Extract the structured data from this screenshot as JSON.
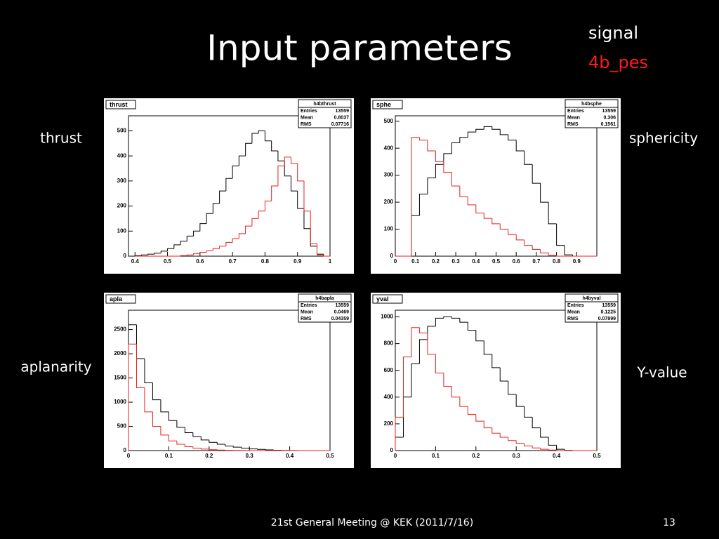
{
  "slide": {
    "title": "Input parameters",
    "signal_label": "signal",
    "signal_name": "4b_pes",
    "panel_labels": [
      "thrust",
      "sphericity",
      "aplanarity",
      "Y-value"
    ],
    "footer": "21st General Meeting @ KEK (2011/7/16)",
    "page": 13
  },
  "chart_data": [
    {
      "type": "histogram",
      "title": "thrust",
      "stats": {
        "name": "h4bthrust",
        "rows": [
          {
            "label": "Entries",
            "value": 13559
          },
          {
            "label": "Mean",
            "value": 0.8037
          },
          {
            "label": "RMS",
            "value": 0.07716
          }
        ]
      },
      "bins": [
        0.4,
        0.42,
        0.44,
        0.46,
        0.48,
        0.5,
        0.52,
        0.54,
        0.56,
        0.58,
        0.6,
        0.62,
        0.64,
        0.66,
        0.68,
        0.7,
        0.72,
        0.74,
        0.76,
        0.78,
        0.8,
        0.82,
        0.84,
        0.86,
        0.88,
        0.9,
        0.92,
        0.94,
        0.96,
        0.98,
        1
      ],
      "series": [
        {
          "color": "#000000",
          "values": [
            2,
            5,
            8,
            12,
            20,
            30,
            45,
            60,
            80,
            100,
            130,
            170,
            210,
            260,
            310,
            360,
            400,
            450,
            490,
            500,
            460,
            420,
            380,
            320,
            260,
            190,
            110,
            40,
            8,
            0
          ]
        },
        {
          "color": "#e8201c",
          "values": [
            0,
            0,
            0,
            0,
            0,
            0,
            0,
            2,
            5,
            10,
            15,
            22,
            30,
            40,
            55,
            70,
            90,
            120,
            150,
            180,
            220,
            280,
            360,
            395,
            370,
            300,
            180,
            50,
            5,
            0
          ]
        }
      ],
      "xlim": [
        0.38,
        1
      ],
      "xticks": [
        0.4,
        0.5,
        0.6,
        0.7,
        0.8,
        0.9,
        1
      ],
      "ylim": [
        0,
        560
      ],
      "yticks": [
        0,
        100,
        200,
        300,
        400,
        500
      ]
    },
    {
      "type": "histogram",
      "title": "sphe",
      "stats": {
        "name": "h4bsphe",
        "rows": [
          {
            "label": "Entries",
            "value": 13559
          },
          {
            "label": "Mean",
            "value": 0.306
          },
          {
            "label": "RMS",
            "value": 0.1561
          }
        ]
      },
      "bins": [
        0,
        0.04,
        0.08,
        0.12,
        0.16,
        0.2,
        0.24,
        0.28,
        0.32,
        0.36,
        0.4,
        0.44,
        0.48,
        0.52,
        0.56,
        0.6,
        0.64,
        0.68,
        0.72,
        0.76,
        0.8,
        0.84,
        0.88,
        0.92,
        0.96,
        1
      ],
      "series": [
        {
          "color": "#000000",
          "values": [
            0,
            0,
            150,
            230,
            290,
            340,
            380,
            420,
            440,
            460,
            470,
            480,
            470,
            450,
            430,
            390,
            340,
            270,
            200,
            120,
            40,
            5,
            0,
            0,
            0
          ]
        },
        {
          "color": "#e8201c",
          "values": [
            0,
            0,
            440,
            430,
            390,
            350,
            310,
            260,
            220,
            190,
            160,
            140,
            120,
            100,
            80,
            60,
            40,
            25,
            12,
            4,
            0,
            0,
            0,
            0,
            0
          ]
        }
      ],
      "xlim": [
        0,
        1
      ],
      "xticks": [
        0,
        0.1,
        0.2,
        0.3,
        0.4,
        0.5,
        0.6,
        0.7,
        0.8,
        0.9
      ],
      "ylim": [
        0,
        520
      ],
      "yticks": [
        0,
        100,
        200,
        300,
        400,
        500
      ]
    },
    {
      "type": "histogram",
      "title": "apla",
      "stats": {
        "name": "h4bapla",
        "rows": [
          {
            "label": "Entries",
            "value": 13559
          },
          {
            "label": "Mean",
            "value": 0.0469
          },
          {
            "label": "RMS",
            "value": 0.04359
          }
        ]
      },
      "bins": [
        0,
        0.02,
        0.04,
        0.06,
        0.08,
        0.1,
        0.12,
        0.14,
        0.16,
        0.18,
        0.2,
        0.22,
        0.24,
        0.26,
        0.28,
        0.3,
        0.32,
        0.34,
        0.36,
        0.38,
        0.4,
        0.42,
        0.44,
        0.46,
        0.48,
        0.5
      ],
      "series": [
        {
          "color": "#000000",
          "values": [
            2600,
            1900,
            1400,
            1050,
            800,
            620,
            480,
            370,
            290,
            220,
            170,
            130,
            95,
            70,
            50,
            35,
            25,
            15,
            8,
            4,
            2,
            0,
            0,
            0,
            0
          ]
        },
        {
          "color": "#e8201c",
          "values": [
            2200,
            1300,
            800,
            500,
            320,
            200,
            130,
            80,
            50,
            30,
            18,
            10,
            6,
            3,
            1,
            0,
            0,
            0,
            0,
            0,
            0,
            0,
            0,
            0,
            0
          ]
        }
      ],
      "xlim": [
        0,
        0.5
      ],
      "xticks": [
        0,
        0.1,
        0.2,
        0.3,
        0.4,
        0.5
      ],
      "ylim": [
        0,
        2900
      ],
      "yticks": [
        0,
        500,
        1000,
        1500,
        2000,
        2500
      ]
    },
    {
      "type": "histogram",
      "title": "yval",
      "stats": {
        "name": "h4byval",
        "rows": [
          {
            "label": "Entries",
            "value": 13559
          },
          {
            "label": "Mean",
            "value": 0.1225
          },
          {
            "label": "RMS",
            "value": 0.07899
          }
        ]
      },
      "bins": [
        0,
        0.02,
        0.04,
        0.06,
        0.08,
        0.1,
        0.12,
        0.14,
        0.16,
        0.18,
        0.2,
        0.22,
        0.24,
        0.26,
        0.28,
        0.3,
        0.32,
        0.34,
        0.36,
        0.38,
        0.4,
        0.42,
        0.44,
        0.46,
        0.48,
        0.5
      ],
      "series": [
        {
          "color": "#000000",
          "values": [
            100,
            400,
            650,
            830,
            930,
            990,
            1000,
            990,
            960,
            900,
            820,
            720,
            620,
            520,
            420,
            330,
            250,
            170,
            100,
            40,
            10,
            2,
            0,
            0,
            0
          ]
        },
        {
          "color": "#e8201c",
          "values": [
            250,
            700,
            920,
            880,
            720,
            580,
            480,
            400,
            330,
            270,
            220,
            170,
            130,
            100,
            75,
            55,
            35,
            20,
            10,
            4,
            0,
            0,
            0,
            0,
            0
          ]
        }
      ],
      "xlim": [
        0,
        0.5
      ],
      "xticks": [
        0,
        0.1,
        0.2,
        0.3,
        0.4,
        0.5
      ],
      "ylim": [
        0,
        1050
      ],
      "yticks": [
        0,
        200,
        400,
        600,
        800,
        1000
      ]
    }
  ]
}
